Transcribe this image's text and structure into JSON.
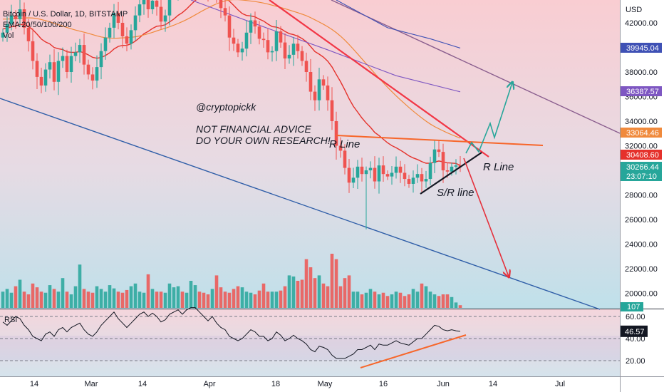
{
  "header": {
    "symbol": "Bitcoin / U.S. Dollar, 1D, BITSTAMP",
    "indicator": "EMA 20/50/100/200",
    "volume": "Vol"
  },
  "rsi_panel": {
    "label": "RSI"
  },
  "annotations": {
    "handle": "@cryptopickk",
    "disclaimer_1": "NOT FINANCIAL ADVICE",
    "disclaimer_2": "DO YOUR OWN RESEARCH!",
    "r_line_left": "R Line",
    "r_line_right": "R Line",
    "sr_line": "S/R line"
  },
  "colors": {
    "up": "#26a69a",
    "down": "#ef5350",
    "trend_red": "#f23645",
    "resistance_orange": "#f7662a",
    "support_black": "#131722",
    "channel_blue": "#2f5ea8",
    "upper_purple": "#8a5e8e",
    "ema20": "#e5312b",
    "ema50": "#f08a3c",
    "ema100": "#7e57c2",
    "ema200": "#3f51b5",
    "projection_green": "#26a69a",
    "projection_red": "#e5313c"
  },
  "chart_data": {
    "type": "candlestick",
    "title": "Bitcoin / U.S. Dollar, 1D, BITSTAMP",
    "currency": "USD",
    "y_range": [
      18500,
      43500
    ],
    "price_ticks": [
      "42000.00",
      "40000.00",
      "38000.00",
      "36000.00",
      "34000.00",
      "32000.00",
      "30000.00",
      "28000.00",
      "26000.00",
      "24000.00",
      "22000.00",
      "20000.00"
    ],
    "x_labels": [
      "14",
      "Mar",
      "14",
      "Apr",
      "18",
      "May",
      "16",
      "Jun",
      "14",
      "Jul"
    ],
    "price_tags": [
      {
        "value": "39945.04",
        "color": "#3f51b5"
      },
      {
        "value": "36387.57",
        "color": "#7e57c2"
      },
      {
        "value": "33064.46",
        "color": "#f08a3c"
      },
      {
        "value": "30408.60",
        "color": "#e5312b"
      },
      {
        "value": "30266.44",
        "color": "#26a69a"
      },
      {
        "value": "23:07:10",
        "color": "#26a69a"
      }
    ],
    "volume_tag": {
      "value": "107",
      "color": "#26a69a"
    },
    "closes": [
      41200,
      41900,
      42600,
      42300,
      43100,
      41600,
      40500,
      38900,
      37600,
      36900,
      38200,
      38800,
      37200,
      38900,
      39300,
      38000,
      39300,
      39600,
      40200,
      38600,
      37800,
      37300,
      38400,
      39700,
      40800,
      41600,
      42800,
      42000,
      40900,
      40300,
      41400,
      42600,
      43500,
      44100,
      43100,
      43800,
      43300,
      42100,
      42600,
      44200,
      44600,
      45500,
      44900,
      46000,
      46800,
      47100,
      46200,
      45300,
      44600,
      45800,
      44200,
      43200,
      42600,
      40800,
      40300,
      39600,
      39900,
      41200,
      42200,
      41700,
      40700,
      40600,
      39600,
      39700,
      41300,
      40400,
      39100,
      39400,
      40300,
      39700,
      38900,
      38000,
      36400,
      35700,
      37400,
      36900,
      35700,
      34000,
      32000,
      31600,
      30200,
      29000,
      29400,
      30300,
      29700,
      30000,
      30200,
      29100,
      30400,
      29700,
      29500,
      29800,
      30300,
      29800,
      29300,
      28900,
      29400,
      29700,
      29100,
      29300,
      30600,
      31700,
      31500,
      30000,
      29900,
      30300,
      30400,
      30266
    ],
    "volume_scale": [
      0.3,
      0.35,
      0.28,
      0.4,
      0.52,
      0.3,
      0.25,
      0.45,
      0.38,
      0.3,
      0.28,
      0.42,
      0.35,
      0.3,
      0.55,
      0.3,
      0.25,
      0.4,
      0.8,
      0.35,
      0.3,
      0.28,
      0.4,
      0.35,
      0.3,
      0.42,
      0.36,
      0.3,
      0.28,
      0.33,
      0.4,
      0.45,
      0.3,
      0.28,
      0.62,
      0.35,
      0.3,
      0.3,
      0.28,
      0.45,
      0.38,
      0.4,
      0.3,
      0.28,
      0.5,
      0.42,
      0.3,
      0.28,
      0.25,
      0.35,
      0.6,
      0.38,
      0.3,
      0.28,
      0.35,
      0.4,
      0.38,
      0.3,
      0.28,
      0.25,
      0.32,
      0.45,
      0.3,
      0.3,
      0.3,
      0.32,
      0.4,
      0.6,
      0.58,
      0.5,
      0.52,
      0.9,
      0.75,
      0.55,
      0.6,
      0.45,
      0.4,
      1.0,
      0.9,
      0.4,
      0.55,
      0.6,
      0.3,
      0.3,
      0.25,
      0.28,
      0.35,
      0.3,
      0.25,
      0.28,
      0.22,
      0.25,
      0.3,
      0.28,
      0.22,
      0.25,
      0.35,
      0.3,
      0.45,
      0.4,
      0.3,
      0.25,
      0.22,
      0.25,
      0.25,
      0.2,
      0.1,
      0.05
    ],
    "rsi_ticks": [
      "60.00",
      "40.00",
      "20.00"
    ],
    "rsi_last": "46.57",
    "rsi": [
      55,
      52,
      56,
      60,
      58,
      52,
      48,
      42,
      40,
      38,
      44,
      46,
      42,
      48,
      50,
      46,
      50,
      52,
      54,
      48,
      44,
      42,
      46,
      52,
      56,
      60,
      64,
      58,
      54,
      50,
      54,
      58,
      62,
      64,
      60,
      63,
      60,
      55,
      57,
      62,
      64,
      66,
      62,
      66,
      68,
      68,
      64,
      60,
      56,
      60,
      54,
      50,
      48,
      42,
      40,
      38,
      40,
      44,
      48,
      46,
      42,
      42,
      38,
      40,
      46,
      43,
      38,
      40,
      43,
      40,
      38,
      35,
      30,
      28,
      33,
      32,
      30,
      25,
      22,
      22,
      22,
      24,
      26,
      30,
      30,
      32,
      34,
      30,
      35,
      34,
      34,
      36,
      38,
      36,
      35,
      34,
      37,
      40,
      40,
      44,
      48,
      52,
      51,
      48,
      47,
      48,
      47,
      46.57
    ],
    "ema20": [
      41500,
      41560,
      41670,
      41740,
      41870,
      41840,
      41710,
      41440,
      41080,
      40680,
      40440,
      40280,
      39990,
      39890,
      39830,
      39640,
      39600,
      39600,
      39660,
      39560,
      39390,
      39190,
      39120,
      39180,
      39340,
      39560,
      39870,
      40080,
      40160,
      40170,
      40290,
      40510,
      40790,
      41110,
      41300,
      41540,
      41720,
      41760,
      41840,
      42070,
      42310,
      42610,
      42830,
      43130,
      43480,
      43820,
      44050,
      44170,
      44210,
      44360,
      44340,
      44230,
      44070,
      43760,
      43420,
      43060,
      42750,
      42600,
      42560,
      42480,
      42300,
      42140,
      41900,
      41690,
      41650,
      41530,
      41300,
      41120,
      41040,
      40910,
      40720,
      40460,
      40070,
      39660,
      39450,
      39210,
      38880,
      38410,
      37800,
      37210,
      36540,
      35820,
      35210,
      34740,
      34260,
      33850,
      33500,
      33080,
      32830,
      32530,
      32240,
      32010,
      31840,
      31640,
      31420,
      31180,
      31010,
      30880,
      30710,
      30580,
      30580,
      30680,
      30760,
      30690,
      30610,
      30590,
      30560,
      30408
    ]
  }
}
